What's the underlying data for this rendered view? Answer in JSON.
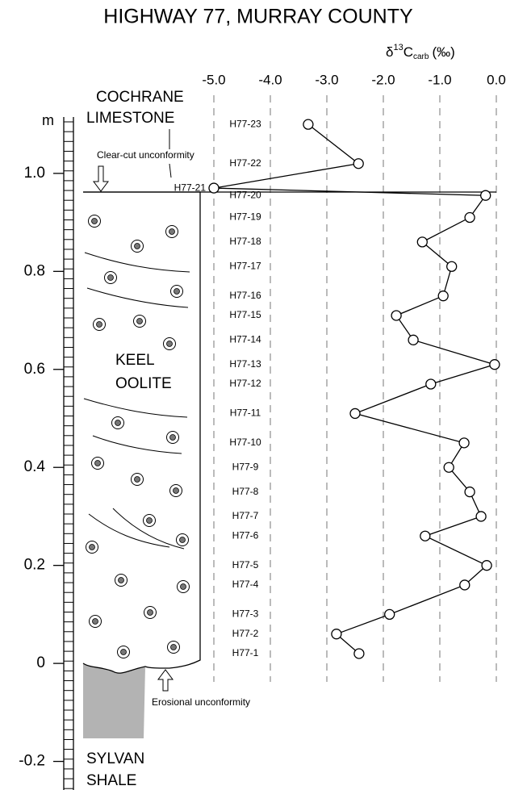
{
  "chart_data": {
    "type": "line",
    "title": "HIGHWAY 77, MURRAY COUNTY",
    "x_label": {
      "base": "δ",
      "sup": "13",
      "main": "C",
      "sub": "carb",
      "unit": "(‰)"
    },
    "y_unit": "m",
    "labels": [
      "H77-1",
      "H77-2",
      "H77-3",
      "H77-4",
      "H77-5",
      "H77-6",
      "H77-7",
      "H77-8",
      "H77-9",
      "H77-10",
      "H77-11",
      "H77-12",
      "H77-13",
      "H77-14",
      "H77-15",
      "H77-16",
      "H77-17",
      "H77-18",
      "H77-19",
      "H77-20",
      "H77-21",
      "H77-22",
      "H77-23"
    ],
    "x": [
      -2.43,
      -2.83,
      -1.89,
      -0.56,
      -0.17,
      -1.26,
      -0.27,
      -0.47,
      -0.84,
      -0.57,
      -2.5,
      -1.16,
      -0.03,
      -1.47,
      -1.77,
      -0.94,
      -0.79,
      -1.31,
      -0.47,
      -0.19,
      -5.0,
      -2.44,
      -3.33
    ],
    "values": [
      0.02,
      0.06,
      0.1,
      0.16,
      0.2,
      0.26,
      0.3,
      0.35,
      0.4,
      0.45,
      0.51,
      0.57,
      0.61,
      0.66,
      0.71,
      0.75,
      0.81,
      0.86,
      0.91,
      0.955,
      0.97,
      1.02,
      1.1
    ],
    "color": "#000000",
    "xlim": [
      -5,
      0
    ],
    "xticks": [
      {
        "value": -5,
        "label": "-5.0"
      },
      {
        "value": -4,
        "label": "-4.0"
      },
      {
        "value": -3,
        "label": "-3.0"
      },
      {
        "value": -2,
        "label": "-2.0"
      },
      {
        "value": -1,
        "label": "-1.0"
      },
      {
        "value": 0,
        "label": "0.0"
      }
    ],
    "ylim": [
      -0.26,
      1.12
    ],
    "yticks": [
      -0.2,
      0,
      0.2,
      0.4,
      0.6,
      0.8,
      {
        "value": 1,
        "label": "1.0"
      }
    ],
    "grid": true,
    "units": [
      {
        "lines": [
          "COCHRANE",
          "LIMESTONE"
        ]
      },
      {
        "lines": [
          "KEEL",
          "OOLITE"
        ]
      },
      {
        "lines": [
          "SYLVAN",
          "SHALE"
        ]
      }
    ],
    "annotations": [
      "Clear-cut unconformity",
      "Erosional unconformity"
    ]
  }
}
